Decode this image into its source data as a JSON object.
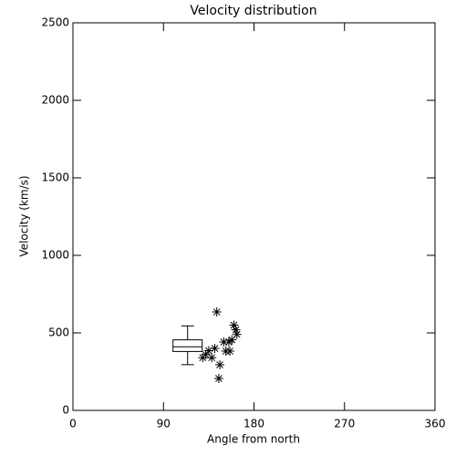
{
  "chart_data": {
    "type": "scatter",
    "title": "Velocity distribution",
    "xlabel": "Angle from north",
    "ylabel": "Velocity (km/s)",
    "xlim": [
      0,
      360
    ],
    "xticks": [
      0,
      90,
      180,
      270,
      360
    ],
    "ylim": [
      0,
      2500
    ],
    "yticks": [
      0,
      500,
      1000,
      1500,
      2000,
      2500
    ],
    "color": "#000000",
    "marker": "asterisk",
    "x": [
      143,
      160,
      162,
      163,
      150,
      155,
      158,
      141,
      135,
      132,
      129,
      138,
      152,
      156,
      146,
      145
    ],
    "y": [
      635,
      550,
      520,
      490,
      441,
      441,
      455,
      400,
      385,
      360,
      340,
      340,
      382,
      382,
      294,
      206
    ],
    "box": {
      "x": 114,
      "whislo": 295,
      "q1": 380,
      "med": 410,
      "q3": 455,
      "whishi": 545
    }
  }
}
